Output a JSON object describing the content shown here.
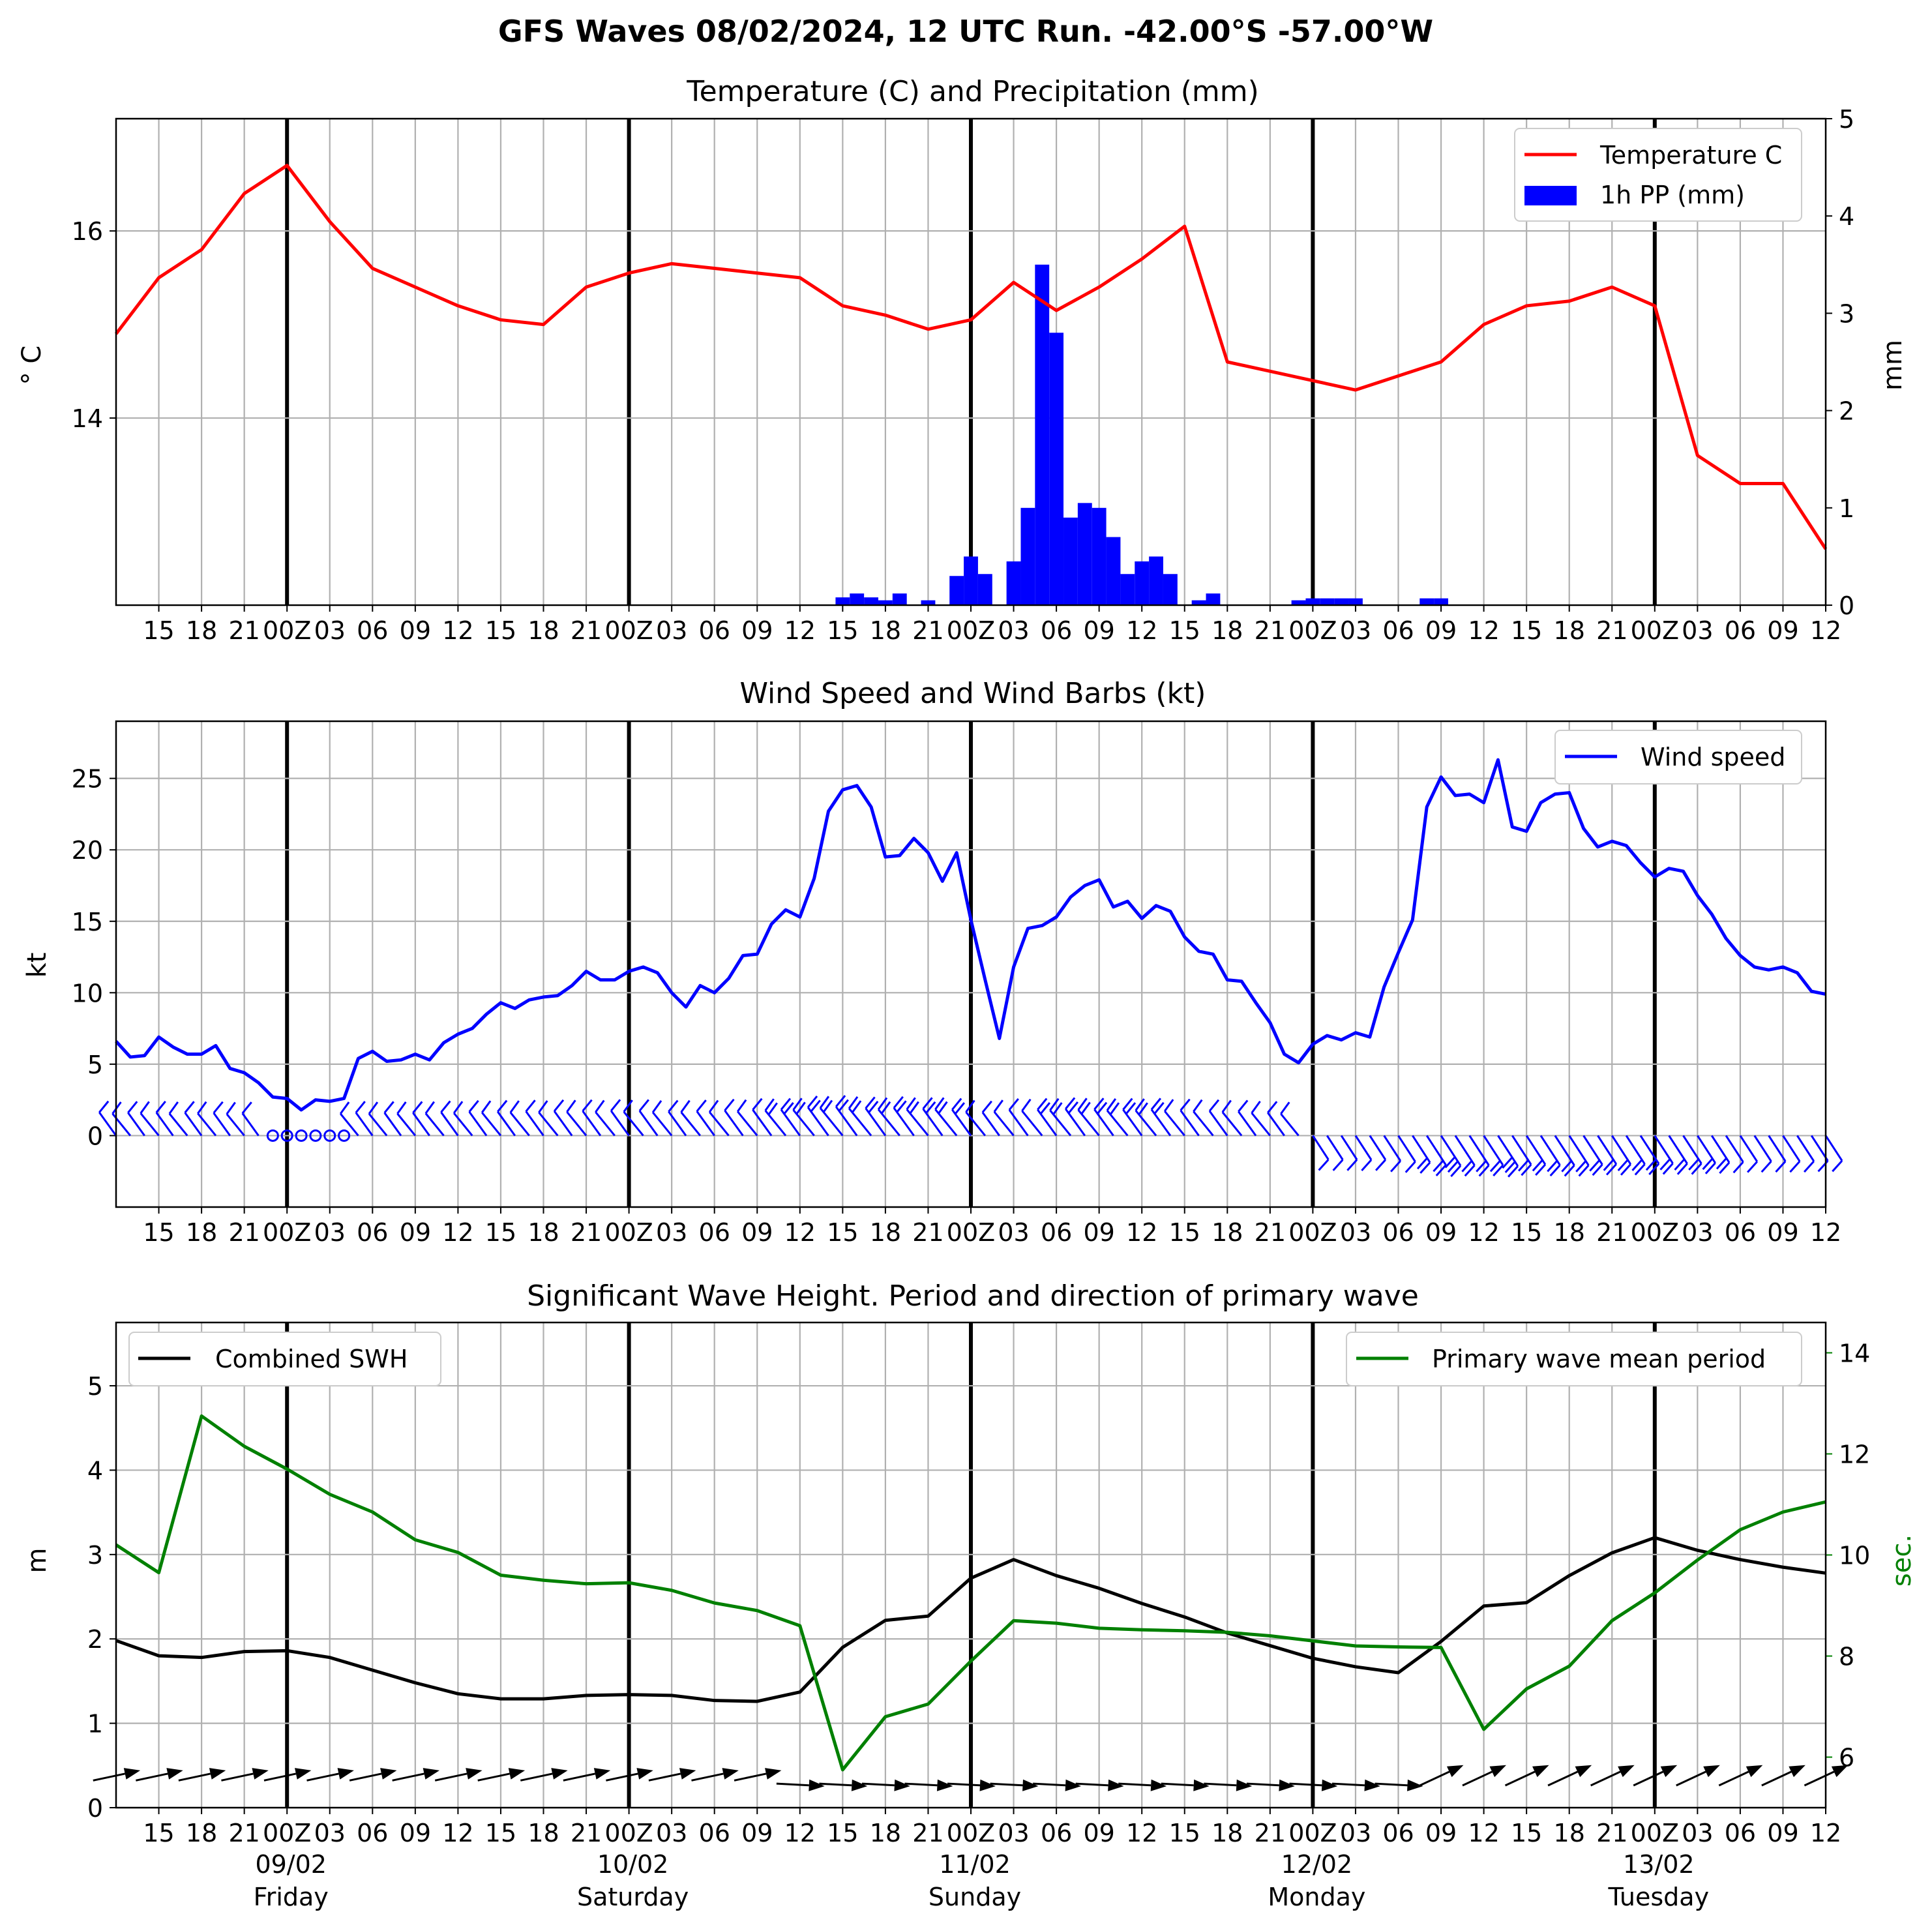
{
  "suptitle": "GFS Waves 08/02/2024, 12 UTC Run. -42.00°S -57.00°W",
  "colors": {
    "temperature": "#ff0000",
    "precip": "#0000ff",
    "wind": "#0000ff",
    "swh": "#000000",
    "period": "#008000",
    "grid": "#b0b0b0"
  },
  "time_axis": {
    "start": "2024-02-08 12:00 UTC",
    "end": "2024-02-13 12:00 UTC",
    "tick_labels": [
      "15",
      "18",
      "21",
      "00Z",
      "03",
      "06",
      "09",
      "12",
      "15",
      "18",
      "21",
      "00Z",
      "03",
      "06",
      "09",
      "12",
      "15",
      "18",
      "21",
      "00Z",
      "03",
      "06",
      "09",
      "12",
      "15",
      "18",
      "21",
      "00Z",
      "03",
      "06",
      "09",
      "12",
      "15",
      "18",
      "21",
      "00Z",
      "03",
      "06",
      "09",
      "12"
    ],
    "day_labels": [
      {
        "date": "09/02",
        "weekday": "Friday"
      },
      {
        "date": "10/02",
        "weekday": "Saturday"
      },
      {
        "date": "11/02",
        "weekday": "Sunday"
      },
      {
        "date": "12/02",
        "weekday": "Monday"
      },
      {
        "date": "13/02",
        "weekday": "Tuesday"
      }
    ]
  },
  "chart_data": [
    {
      "type": "line",
      "title": "Temperature (C) and Precipitation (mm)",
      "ylabel": "$^\\circ$C",
      "ylabel_display": "° C",
      "y2label": "mm",
      "ylim": [
        12.0,
        17.2
      ],
      "y2lim": [
        0,
        5
      ],
      "yticks": [
        14,
        16
      ],
      "y2ticks": [
        0,
        1,
        2,
        3,
        4,
        5
      ],
      "legend": {
        "placement": "top-right",
        "entries": [
          "Temperature C",
          "1h PP (mm)"
        ]
      },
      "grid": true,
      "series": [
        {
          "name": "Temperature C",
          "x_unit": "hours after 2024-02-08 12:00 UTC",
          "x": [
            0,
            3,
            6,
            9,
            12,
            15,
            18,
            21,
            24,
            27,
            30,
            33,
            36,
            39,
            42,
            45,
            48,
            51,
            54,
            57,
            60,
            63,
            66,
            69,
            72,
            75,
            78,
            81,
            84,
            87,
            90,
            93,
            96,
            99,
            102,
            105,
            108,
            111,
            114,
            117,
            120
          ],
          "values": [
            14.9,
            15.5,
            15.8,
            16.4,
            16.7,
            16.1,
            15.6,
            15.4,
            15.2,
            15.05,
            15.0,
            15.4,
            15.55,
            15.65,
            15.6,
            15.55,
            15.5,
            15.2,
            15.1,
            14.95,
            15.05,
            15.45,
            15.15,
            15.4,
            15.7,
            16.05,
            14.6,
            14.5,
            14.4,
            14.3,
            14.45,
            14.6,
            15.0,
            15.2,
            15.25,
            15.4,
            15.2,
            13.6,
            13.3,
            13.3,
            12.6
          ]
        },
        {
          "name": "1h PP (mm)",
          "type": "bar",
          "x_unit": "hours after 2024-02-08 12:00 UTC",
          "x": [
            51,
            52,
            53,
            54,
            55,
            56,
            57,
            58,
            59,
            60,
            61,
            62,
            63,
            64,
            65,
            66,
            67,
            68,
            69,
            70,
            71,
            72,
            73,
            74,
            75,
            76,
            77,
            78,
            79,
            80,
            81,
            82,
            83,
            84,
            85,
            86,
            87,
            88,
            89,
            90,
            91,
            92,
            93,
            94,
            95,
            96,
            97,
            98,
            99
          ],
          "values": [
            0.08,
            0.12,
            0.08,
            0.05,
            0.12,
            0.0,
            0.05,
            0.0,
            0.3,
            0.5,
            0.32,
            0.0,
            0.45,
            1.0,
            3.5,
            2.8,
            0.9,
            1.05,
            1.0,
            0.7,
            0.32,
            0.45,
            0.5,
            0.32,
            0.0,
            0.05,
            0.12,
            0.0,
            0.0,
            0.0,
            0.0,
            0.0,
            0.05,
            0.07,
            0.07,
            0.07,
            0.07,
            0.0,
            0.0,
            0.0,
            0.0,
            0.07,
            0.07,
            0.0,
            0.0,
            0.0,
            0.0,
            0.0,
            0.0
          ]
        }
      ]
    },
    {
      "type": "line",
      "title": "Wind Speed and Wind Barbs (kt)",
      "ylabel": "kt",
      "ylim": [
        -5,
        29
      ],
      "yticks": [
        0,
        5,
        10,
        15,
        20,
        25
      ],
      "legend": {
        "placement": "top-right",
        "entries": [
          "Wind speed"
        ]
      },
      "grid": true,
      "series": [
        {
          "name": "Wind speed",
          "x_unit": "hours after 2024-02-08 12:00 UTC",
          "x": [
            0,
            1,
            2,
            3,
            4,
            5,
            6,
            7,
            8,
            9,
            10,
            11,
            12,
            13,
            14,
            15,
            16,
            17,
            18,
            19,
            20,
            21,
            22,
            23,
            24,
            25,
            26,
            27,
            28,
            29,
            30,
            31,
            32,
            33,
            34,
            35,
            36,
            37,
            38,
            39,
            40,
            41,
            42,
            43,
            44,
            45,
            46,
            47,
            48,
            49,
            50,
            51,
            52,
            53,
            54,
            55,
            56,
            57,
            58,
            59,
            60,
            61,
            62,
            63,
            64,
            65,
            66,
            67,
            68,
            69,
            70,
            71,
            72,
            73,
            74,
            75,
            76,
            77,
            78,
            79,
            80,
            81,
            82,
            83,
            84,
            85,
            86,
            87,
            88,
            89,
            90,
            91,
            92,
            93,
            94,
            95,
            96,
            97,
            98,
            99,
            100,
            101,
            102,
            103,
            104,
            105,
            106,
            107,
            108,
            109,
            110,
            111,
            112,
            113,
            114,
            115,
            116,
            117,
            118,
            119,
            120
          ],
          "values": [
            6.6,
            5.5,
            5.6,
            6.9,
            6.2,
            5.7,
            5.7,
            6.3,
            4.7,
            4.4,
            3.7,
            2.7,
            2.6,
            1.8,
            2.5,
            2.4,
            2.6,
            5.4,
            5.9,
            5.2,
            5.3,
            5.7,
            5.3,
            6.5,
            7.1,
            7.5,
            8.5,
            9.3,
            8.9,
            9.5,
            9.7,
            9.8,
            10.5,
            11.5,
            10.9,
            10.9,
            11.5,
            11.8,
            11.4,
            10.0,
            9.0,
            10.5,
            10.0,
            11.0,
            12.6,
            12.7,
            14.8,
            15.8,
            15.3,
            18.0,
            22.7,
            24.2,
            24.5,
            23.0,
            19.5,
            19.6,
            20.8,
            19.8,
            17.8,
            19.8,
            15.1,
            10.9,
            6.8,
            11.8,
            14.5,
            14.7,
            15.3,
            16.7,
            17.5,
            17.9,
            16.0,
            16.4,
            15.2,
            16.1,
            15.7,
            13.9,
            12.9,
            12.7,
            10.9,
            10.8,
            9.3,
            7.9,
            5.7,
            5.1,
            6.4,
            7.0,
            6.7,
            7.2,
            6.9,
            10.4,
            12.8,
            15.1,
            23.0,
            25.1,
            23.8,
            23.9,
            23.3,
            26.3,
            21.6,
            21.3,
            23.3,
            23.9,
            24.0,
            21.5,
            20.2,
            20.6,
            20.3,
            19.1,
            18.1,
            18.7,
            18.5,
            16.8,
            15.5,
            13.8,
            12.6,
            11.8,
            11.6,
            11.8,
            11.4,
            10.1,
            9.9
          ]
        }
      ],
      "wind_barbs": "blue barbs along y=0, one per hour; SW-ish in first days, NE-ish after Monday 06Z"
    },
    {
      "type": "line",
      "title": "Significant Wave Height. Period and direction of primary wave",
      "ylabel": "m",
      "y2label": "sec.",
      "ylim": [
        0,
        5.75
      ],
      "y2lim": [
        5,
        14.6
      ],
      "yticks": [
        0,
        1,
        2,
        3,
        4,
        5
      ],
      "y2ticks": [
        6,
        8,
        10,
        12,
        14
      ],
      "legend": [
        {
          "placement": "top-left",
          "entries": [
            "Combined SWH"
          ]
        },
        {
          "placement": "top-right",
          "entries": [
            "Primary wave mean period"
          ]
        }
      ],
      "grid": true,
      "series": [
        {
          "name": "Combined SWH",
          "x_unit": "hours after 2024-02-08 12:00 UTC",
          "x": [
            0,
            3,
            6,
            9,
            12,
            15,
            18,
            21,
            24,
            27,
            30,
            33,
            36,
            39,
            42,
            45,
            48,
            51,
            54,
            57,
            60,
            63,
            66,
            69,
            72,
            75,
            78,
            81,
            84,
            87,
            90,
            93,
            96,
            99,
            102,
            105,
            108,
            111,
            114,
            117,
            120
          ],
          "values": [
            1.98,
            1.8,
            1.78,
            1.85,
            1.86,
            1.78,
            1.63,
            1.48,
            1.35,
            1.29,
            1.29,
            1.33,
            1.34,
            1.33,
            1.27,
            1.26,
            1.37,
            1.9,
            2.22,
            2.27,
            2.72,
            2.94,
            2.75,
            2.6,
            2.42,
            2.26,
            2.07,
            1.92,
            1.77,
            1.67,
            1.6,
            1.97,
            2.39,
            2.43,
            2.75,
            3.02,
            3.2,
            3.05,
            2.94,
            2.85,
            2.78
          ]
        },
        {
          "name": "Primary wave mean period",
          "x_unit": "hours after 2024-02-08 12:00 UTC",
          "x": [
            0,
            3,
            6,
            9,
            12,
            15,
            18,
            21,
            24,
            27,
            30,
            33,
            36,
            39,
            42,
            45,
            48,
            51,
            54,
            57,
            60,
            63,
            66,
            69,
            72,
            75,
            78,
            81,
            84,
            87,
            90,
            93,
            96,
            99,
            102,
            105,
            108,
            111,
            114,
            117,
            120
          ],
          "values": [
            10.2,
            9.65,
            12.75,
            12.15,
            11.7,
            11.2,
            10.85,
            10.3,
            10.05,
            9.6,
            9.5,
            9.43,
            9.45,
            9.3,
            9.05,
            8.9,
            8.6,
            5.75,
            6.8,
            7.05,
            7.9,
            8.7,
            8.65,
            8.55,
            8.52,
            8.5,
            8.47,
            8.4,
            8.3,
            8.2,
            8.18,
            8.17,
            6.55,
            7.35,
            7.8,
            8.7,
            9.25,
            9.9,
            10.5,
            10.85,
            11.05
          ]
        }
      ],
      "wave_direction_arrows": "black arrows along the bottom, one every 3 hours"
    }
  ]
}
